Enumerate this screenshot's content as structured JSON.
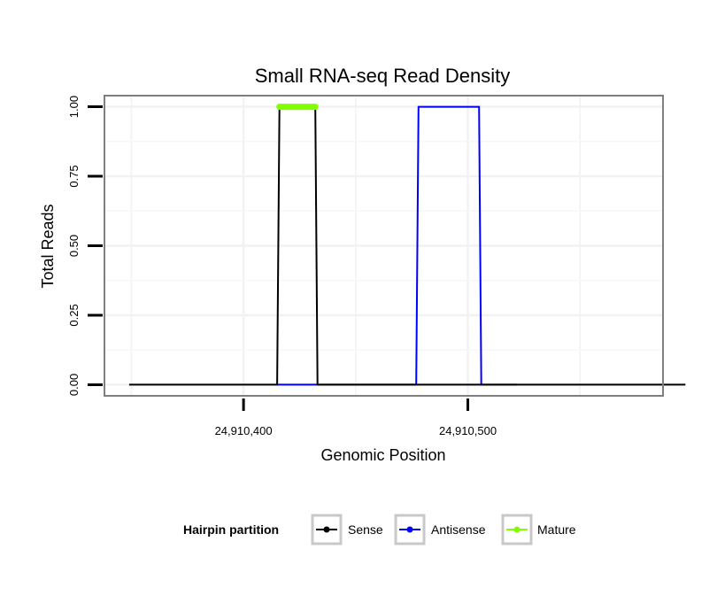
{
  "chart_data": {
    "type": "line",
    "title": "Small RNA-seq Read Density",
    "xlabel": "Genomic Position",
    "ylabel": "Total Reads",
    "xlim": [
      24910338,
      24910587
    ],
    "ylim": [
      -0.04,
      1.04
    ],
    "x_ticks": [
      {
        "value": 24910400,
        "label": "24,910,400"
      },
      {
        "value": 24910500,
        "label": "24,910,500"
      }
    ],
    "y_ticks": [
      {
        "value": 0,
        "label": "0.00"
      },
      {
        "value": 0.25,
        "label": "0.25"
      },
      {
        "value": 0.5,
        "label": "0.50"
      },
      {
        "value": 0.75,
        "label": "0.75"
      },
      {
        "value": 1.0,
        "label": "1.00"
      }
    ],
    "legend": {
      "title": "Hairpin partition",
      "position": "bottom",
      "entries": [
        "Sense",
        "Antisense",
        "Mature"
      ]
    },
    "series": [
      {
        "name": "Sense",
        "color": "#000000",
        "points": [
          [
            24910349,
            0
          ],
          [
            24910415,
            0
          ],
          [
            24910416,
            1
          ],
          [
            24910432,
            1
          ],
          [
            24910433,
            0
          ],
          [
            24910597,
            0
          ]
        ]
      },
      {
        "name": "Antisense",
        "color": "#0000ff",
        "points": [
          [
            24910415,
            0
          ],
          [
            24910433,
            0
          ],
          [
            24910477,
            0
          ],
          [
            24910478,
            1
          ],
          [
            24910505,
            1
          ],
          [
            24910506,
            0
          ],
          [
            24910522,
            0
          ]
        ]
      },
      {
        "name": "Mature",
        "color": "#7fff00",
        "points": [
          [
            24910416,
            1
          ],
          [
            24910432,
            1
          ]
        ]
      }
    ]
  }
}
